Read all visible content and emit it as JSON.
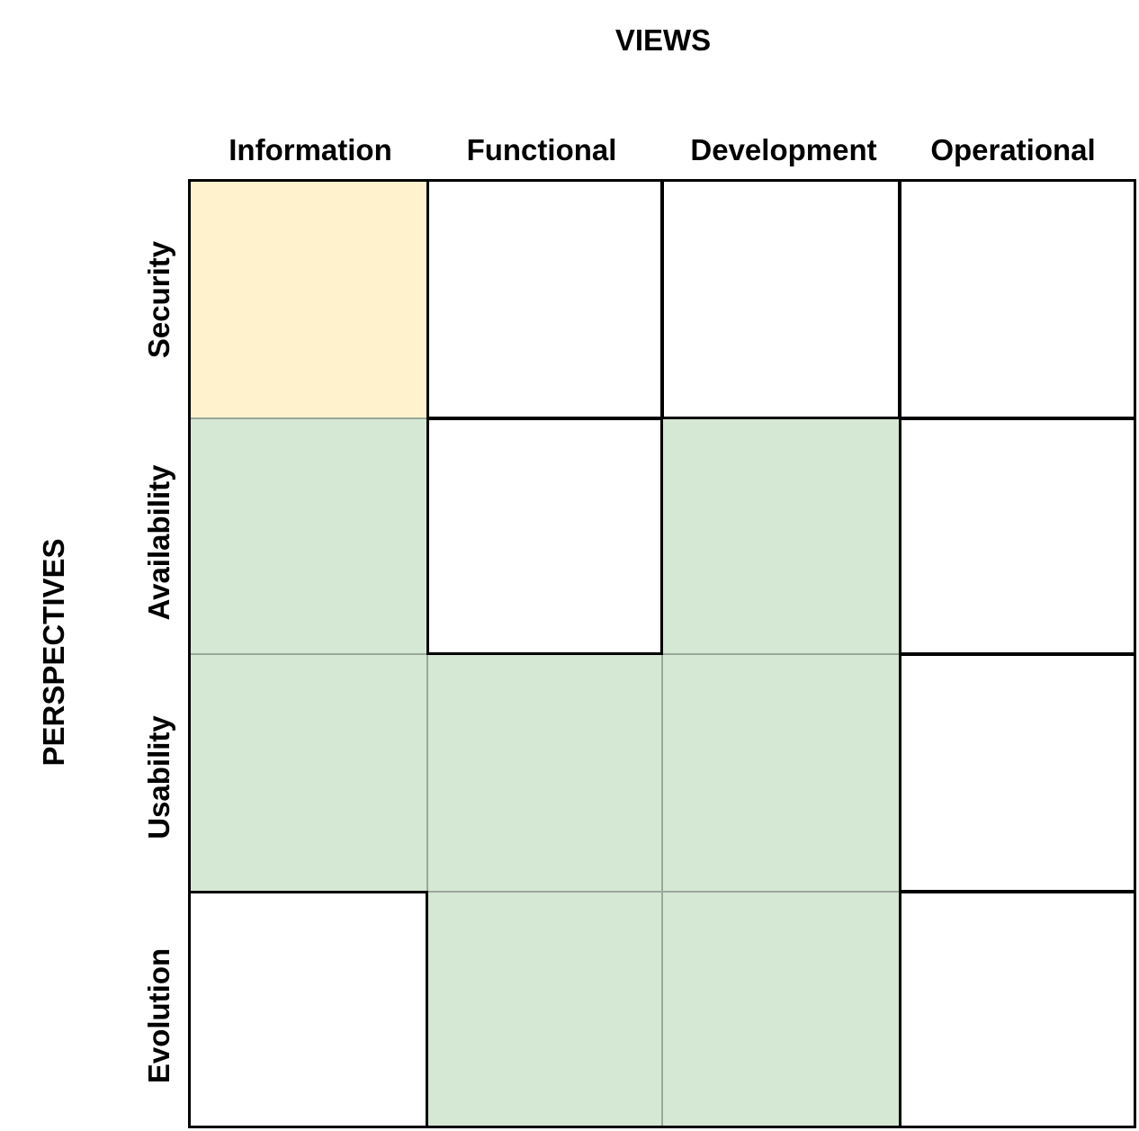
{
  "title_top": "VIEWS",
  "title_side": "PERSPECTIVES",
  "columns": [
    "Information",
    "Functional",
    "Development",
    "Operational"
  ],
  "rows": [
    "Security",
    "Availability",
    "Usability",
    "Evolution"
  ],
  "colors": {
    "highlight_yellow": "#fff2cc",
    "applicable_green": "#d5e8d4",
    "empty": "#ffffff"
  },
  "matrix": [
    [
      "yellow",
      "white",
      "white",
      "white"
    ],
    [
      "green",
      "white",
      "green",
      "white"
    ],
    [
      "green",
      "green",
      "green",
      "white"
    ],
    [
      "white",
      "green",
      "green",
      "white"
    ]
  ]
}
